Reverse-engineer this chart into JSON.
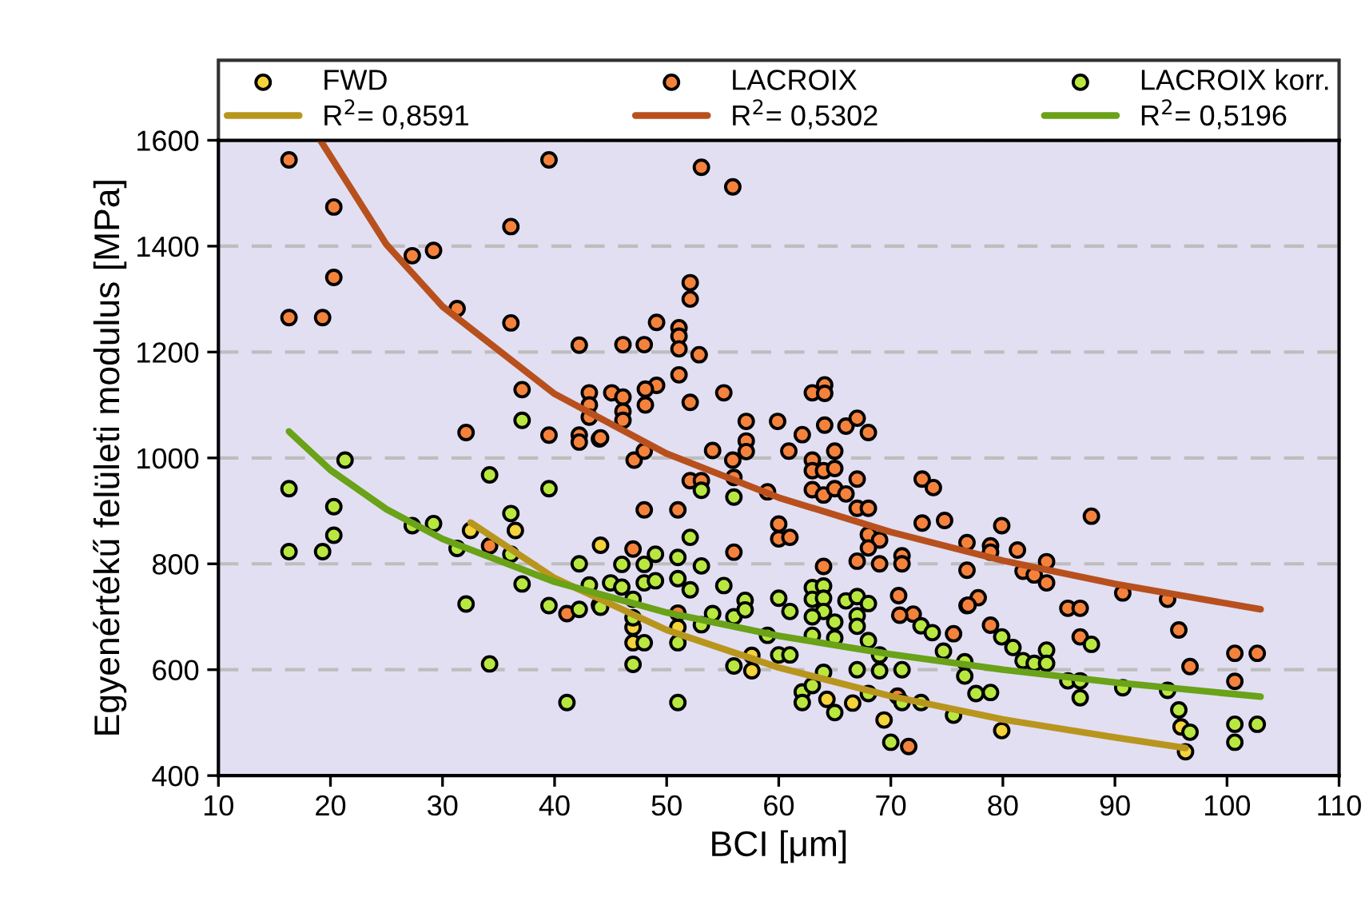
{
  "chart_data": {
    "type": "scatter",
    "xlabel": "BCI [μm]",
    "ylabel": "Egyenértékű felületi modulus [MPa]",
    "xlim": [
      10,
      110
    ],
    "ylim": [
      400,
      1600
    ],
    "xticks": [
      10,
      20,
      30,
      40,
      50,
      60,
      70,
      80,
      90,
      100,
      110
    ],
    "yticks": [
      400,
      600,
      800,
      1000,
      1200,
      1400,
      1600
    ],
    "grid": "y",
    "legend": "top",
    "series": [
      {
        "name": "FWD",
        "marker": "circle",
        "color": "#f5d33a",
        "x": [
          32.5,
          36.5,
          44.1,
          47,
          47,
          51,
          57.6,
          57.6,
          64.3,
          66.6,
          69.4,
          79.9,
          95.9,
          96.3
        ],
        "values": [
          863,
          863,
          835,
          680,
          651,
          680,
          598,
          627,
          544,
          537,
          505,
          485,
          492,
          445
        ]
      },
      {
        "name": "LACROIX",
        "marker": "circle",
        "color": "#f4823c",
        "x": [
          16.3,
          20.3,
          36.1,
          39.5,
          27.3,
          29.2,
          20.3,
          16.3,
          19.3,
          31.3,
          36.1,
          42.2,
          37.1,
          43.1,
          43.1,
          43.1,
          32.1,
          39.5,
          42.2,
          42.2,
          44,
          34.2,
          41.1,
          53.1,
          55.9,
          52.1,
          52.1,
          49.1,
          46.1,
          48,
          51.1,
          51.1,
          51.1,
          52.9,
          51.1,
          49.1,
          48.1,
          48.1,
          45.1,
          46.1,
          46.1,
          46.1,
          52.1,
          55.1,
          44.1,
          47.1,
          48,
          57.1,
          57.1,
          57.1,
          54.1,
          55.9,
          59.9,
          62.1,
          60.9,
          63,
          64.1,
          64.1,
          64.1,
          66,
          67,
          68,
          63,
          63,
          64,
          65,
          65,
          67,
          63,
          64,
          65,
          66,
          67,
          68,
          52.1,
          53.1,
          56,
          59,
          60,
          60,
          61,
          48,
          51,
          56,
          47,
          68,
          69,
          68,
          67,
          69,
          71,
          71,
          72.8,
          73.8,
          72.8,
          74.8,
          76.8,
          76.8,
          64,
          70.7,
          72,
          70.8,
          75.6,
          76.8,
          77.8,
          70.6,
          71.6,
          51,
          87.9,
          79.9,
          78.9,
          78.9,
          81.3,
          81.8,
          82.8,
          83.9,
          83.9,
          76.9,
          85.8,
          86.9,
          86.9,
          78.9,
          90.7,
          94.7,
          95.7,
          96.7,
          100.7,
          102.7,
          100.7
        ],
        "values": [
          1563,
          1474,
          1437,
          1563,
          1382,
          1392,
          1341,
          1265,
          1265,
          1282,
          1255,
          1213,
          1129,
          1123,
          1100,
          1077,
          1048,
          1043,
          1043,
          1030,
          1036,
          834,
          706,
          1549,
          1512,
          1331,
          1300,
          1256,
          1214,
          1214,
          1246,
          1230,
          1206,
          1195,
          1157,
          1137,
          1130,
          1100,
          1123,
          1115,
          1088,
          1071,
          1105,
          1123,
          1038,
          996,
          1013,
          1069,
          1032,
          1012,
          1014,
          996,
          1069,
          1044,
          1013,
          1123,
          1138,
          1122,
          1062,
          1060,
          1075,
          1048,
          996,
          976,
          976,
          1013,
          980,
          960,
          940,
          930,
          942,
          932,
          905,
          905,
          957,
          957,
          963,
          936,
          875,
          847,
          850,
          902,
          902,
          822,
          828,
          855,
          845,
          830,
          805,
          800,
          815,
          800,
          960,
          944,
          877,
          882,
          840,
          788,
          795,
          740,
          705,
          703,
          668,
          721,
          736,
          550,
          455,
          707,
          890,
          872,
          834,
          822,
          826,
          786,
          779,
          804,
          764,
          722,
          716,
          716,
          662,
          684,
          745,
          733,
          675,
          606,
          631,
          631,
          578
        ]
      },
      {
        "name": "LACROIX korr.",
        "marker": "circle",
        "color": "#b8e840",
        "x": [
          16.3,
          16.3,
          19.3,
          21.3,
          20.3,
          20.3,
          27.3,
          29.2,
          31.3,
          32.1,
          34.2,
          34.2,
          36.1,
          36.1,
          37.1,
          37.1,
          39.5,
          39.5,
          41.1,
          42.2,
          42.2,
          43.1,
          44,
          44.1,
          45,
          46,
          46,
          47,
          47,
          47,
          48,
          48,
          48,
          49,
          49,
          51,
          51,
          51,
          51,
          52.1,
          52.1,
          53.1,
          53.1,
          53.1,
          54.1,
          55.1,
          56,
          56,
          56,
          57,
          57,
          59,
          60,
          60,
          61,
          61,
          62.1,
          62.1,
          63,
          63,
          64,
          64,
          64,
          63,
          63,
          63,
          64,
          65,
          65,
          65,
          66,
          67,
          67,
          67,
          67,
          68,
          68,
          68,
          69,
          69,
          70,
          71,
          71,
          72.7,
          72.7,
          73.7,
          74.7,
          75.6,
          76.6,
          76.6,
          77.6,
          78.9,
          79.9,
          80.9,
          81.8,
          82.8,
          83.9,
          83.9,
          85.8,
          86.9,
          86.9,
          87.9,
          90.7,
          94.7,
          95.7,
          96.7,
          100.7,
          100.7,
          102.7
        ],
        "values": [
          942,
          823,
          823,
          996,
          908,
          854,
          872,
          876,
          829,
          724,
          968,
          611,
          895,
          818,
          1071,
          762,
          942,
          721,
          538,
          800,
          714,
          760,
          722,
          718,
          764,
          756,
          799,
          733,
          698,
          610,
          799,
          764,
          651,
          818,
          768,
          812,
          772,
          651,
          538,
          850,
          751,
          939,
          796,
          685,
          706,
          759,
          926,
          700,
          607,
          731,
          713,
          665,
          735,
          628,
          710,
          628,
          558,
          538,
          755,
          733,
          758,
          735,
          710,
          700,
          665,
          570,
          595,
          690,
          660,
          519,
          730,
          738,
          702,
          682,
          600,
          725,
          655,
          555,
          628,
          598,
          463,
          600,
          538,
          683,
          538,
          670,
          635,
          514,
          615,
          588,
          555,
          557,
          662,
          642,
          617,
          612,
          637,
          612,
          579,
          579,
          547,
          648,
          566,
          561,
          524,
          482,
          497,
          463,
          497
        ]
      },
      {
        "name": "R$^{2}$= 0,8591",
        "type": "line",
        "color": "#b8961e",
        "x": [
          32.5,
          40,
          50,
          60,
          70,
          80,
          90,
          96.3
        ],
        "values": [
          878,
          773,
          675,
          604,
          550,
          506,
          472,
          452
        ]
      },
      {
        "name": "R$^{2}$= 0,5302",
        "type": "line",
        "color": "#b8501e",
        "x": [
          19.1,
          25,
          30,
          40,
          50,
          60,
          70,
          80,
          90,
          103
        ],
        "values": [
          1600,
          1403,
          1286,
          1121,
          1008,
          925,
          860,
          806,
          762,
          714
        ]
      },
      {
        "name": "R$^{2}$= 0,5196",
        "type": "line",
        "color": "#6aa218",
        "x": [
          16.3,
          20,
          25,
          30,
          40,
          50,
          60,
          70,
          80,
          90,
          103
        ],
        "values": [
          1050,
          977,
          903,
          847,
          766,
          708,
          664,
          629,
          600,
          576,
          549
        ]
      }
    ]
  }
}
